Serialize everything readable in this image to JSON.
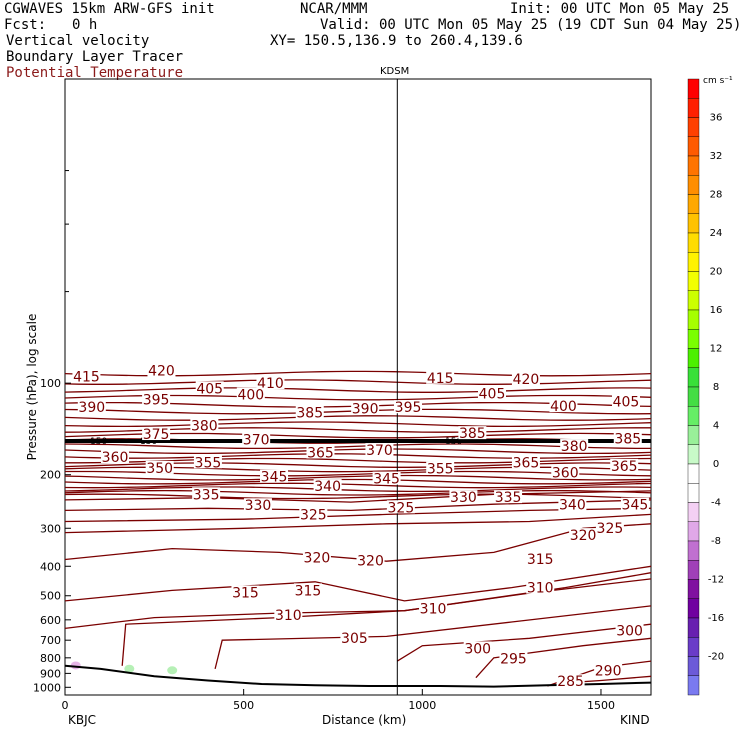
{
  "header": {
    "model": "CGWAVES 15km ARW-GFS init",
    "fcst_label": "Fcst:",
    "fcst_value": "0 h",
    "org": "NCAR/MMM",
    "init": "Init: 00 UTC Mon 05 May 25",
    "valid": "Valid: 00 UTC Mon 05 May 25 (19 CDT Sun 04 May 25)",
    "field1": "Vertical velocity",
    "field2": "Boundary Layer Tracer",
    "field3": "Potential Temperature",
    "xy": "XY= 150.5,136.9 to 260.4,139.6"
  },
  "colors": {
    "theta": "#7a0000",
    "field3_text": "#8b1a1a",
    "terrain": "#000000",
    "pbl": "#000000"
  },
  "chart_data": {
    "type": "line",
    "title": "",
    "xlabel": "Distance (km)",
    "ylabel": "Pressure (hPa), log scale",
    "xlim": [
      0,
      1640
    ],
    "ylim": [
      1060,
      10
    ],
    "yscale": "log",
    "x_ticks": [
      "0",
      "500",
      "1000",
      "1500"
    ],
    "y_ticks": [
      "100",
      "200",
      "300",
      "400",
      "500",
      "600",
      "700",
      "800",
      "900",
      "1000"
    ],
    "endpoint_labels": {
      "left": "KBJC",
      "right": "KIND"
    },
    "station_marker": {
      "label": "KDSM",
      "x": 930
    },
    "pbl_top": {
      "pressure": 155,
      "labels": [
        "150",
        "150",
        "150"
      ]
    },
    "terrain_surface": {
      "x": [
        0,
        100,
        250,
        400,
        550,
        700,
        850,
        930,
        1050,
        1200,
        1350,
        1500,
        1640
      ],
      "p": [
        850,
        870,
        920,
        950,
        975,
        985,
        990,
        990,
        990,
        995,
        985,
        975,
        965
      ]
    },
    "theta_labels": [
      {
        "text": "415",
        "x": 60,
        "p": 95
      },
      {
        "text": "420",
        "x": 270,
        "p": 91
      },
      {
        "text": "405",
        "x": 405,
        "p": 104
      },
      {
        "text": "410",
        "x": 575,
        "p": 100
      },
      {
        "text": "415",
        "x": 1050,
        "p": 96
      },
      {
        "text": "420",
        "x": 1290,
        "p": 97
      },
      {
        "text": "390",
        "x": 75,
        "p": 120
      },
      {
        "text": "395",
        "x": 255,
        "p": 113
      },
      {
        "text": "400",
        "x": 520,
        "p": 109
      },
      {
        "text": "405",
        "x": 1195,
        "p": 108
      },
      {
        "text": "400",
        "x": 1395,
        "p": 119
      },
      {
        "text": "405",
        "x": 1570,
        "p": 115
      },
      {
        "text": "380",
        "x": 390,
        "p": 138
      },
      {
        "text": "385",
        "x": 685,
        "p": 125
      },
      {
        "text": "390",
        "x": 840,
        "p": 121
      },
      {
        "text": "395",
        "x": 960,
        "p": 120
      },
      {
        "text": "375",
        "x": 255,
        "p": 147
      },
      {
        "text": "370",
        "x": 535,
        "p": 153
      },
      {
        "text": "385",
        "x": 1140,
        "p": 146
      },
      {
        "text": "385",
        "x": 1575,
        "p": 152
      },
      {
        "text": "360",
        "x": 140,
        "p": 175
      },
      {
        "text": "365",
        "x": 715,
        "p": 169
      },
      {
        "text": "370",
        "x": 880,
        "p": 166
      },
      {
        "text": "380",
        "x": 1425,
        "p": 161
      },
      {
        "text": "350",
        "x": 265,
        "p": 190
      },
      {
        "text": "355",
        "x": 400,
        "p": 182
      },
      {
        "text": "345",
        "x": 585,
        "p": 203
      },
      {
        "text": "345",
        "x": 900,
        "p": 206
      },
      {
        "text": "355",
        "x": 1050,
        "p": 191
      },
      {
        "text": "365",
        "x": 1290,
        "p": 182
      },
      {
        "text": "360",
        "x": 1400,
        "p": 197
      },
      {
        "text": "365",
        "x": 1565,
        "p": 187
      },
      {
        "text": "335",
        "x": 395,
        "p": 232
      },
      {
        "text": "340",
        "x": 735,
        "p": 218
      },
      {
        "text": "330",
        "x": 540,
        "p": 252
      },
      {
        "text": "325",
        "x": 940,
        "p": 256
      },
      {
        "text": "330",
        "x": 1115,
        "p": 237
      },
      {
        "text": "335",
        "x": 1240,
        "p": 237
      },
      {
        "text": "340",
        "x": 1420,
        "p": 251
      },
      {
        "text": "345",
        "x": 1595,
        "p": 251
      },
      {
        "text": "325",
        "x": 695,
        "p": 270
      },
      {
        "text": "320",
        "x": 1450,
        "p": 316
      },
      {
        "text": "325",
        "x": 1525,
        "p": 299
      },
      {
        "text": "320",
        "x": 705,
        "p": 374
      },
      {
        "text": "320",
        "x": 855,
        "p": 383
      },
      {
        "text": "315",
        "x": 1330,
        "p": 378
      },
      {
        "text": "315",
        "x": 505,
        "p": 488
      },
      {
        "text": "315",
        "x": 680,
        "p": 480
      },
      {
        "text": "310",
        "x": 1330,
        "p": 470
      },
      {
        "text": "310",
        "x": 1030,
        "p": 550
      },
      {
        "text": "310",
        "x": 625,
        "p": 578
      },
      {
        "text": "305",
        "x": 810,
        "p": 688
      },
      {
        "text": "300",
        "x": 1155,
        "p": 745
      },
      {
        "text": "300",
        "x": 1580,
        "p": 650
      },
      {
        "text": "295",
        "x": 1255,
        "p": 803
      },
      {
        "text": "290",
        "x": 1520,
        "p": 880
      },
      {
        "text": "285",
        "x": 1415,
        "p": 955
      }
    ],
    "colorbar": {
      "unit": "cm s⁻¹",
      "labels": [
        "36",
        "32",
        "28",
        "24",
        "20",
        "16",
        "12",
        "8",
        "4",
        "0",
        "-4",
        "-8",
        "-12",
        "-16",
        "-20"
      ],
      "colors": [
        "#ff0000",
        "#ff2000",
        "#ff4000",
        "#ff5a00",
        "#ff7400",
        "#ff8e00",
        "#ffa800",
        "#ffc200",
        "#ffdc00",
        "#fff200",
        "#f2ff00",
        "#ccff00",
        "#a6ff00",
        "#7aff00",
        "#4cf000",
        "#38e038",
        "#44dd44",
        "#66ee66",
        "#99f099",
        "#c8fac8",
        "#ffffff",
        "#ffffff",
        "#f4d0f4",
        "#e0a8e8",
        "#c070d0",
        "#a040b8",
        "#8010a0",
        "#7000a0",
        "#6820b0",
        "#6a3cc8",
        "#6c5ad8",
        "#7a7af0"
      ]
    }
  }
}
